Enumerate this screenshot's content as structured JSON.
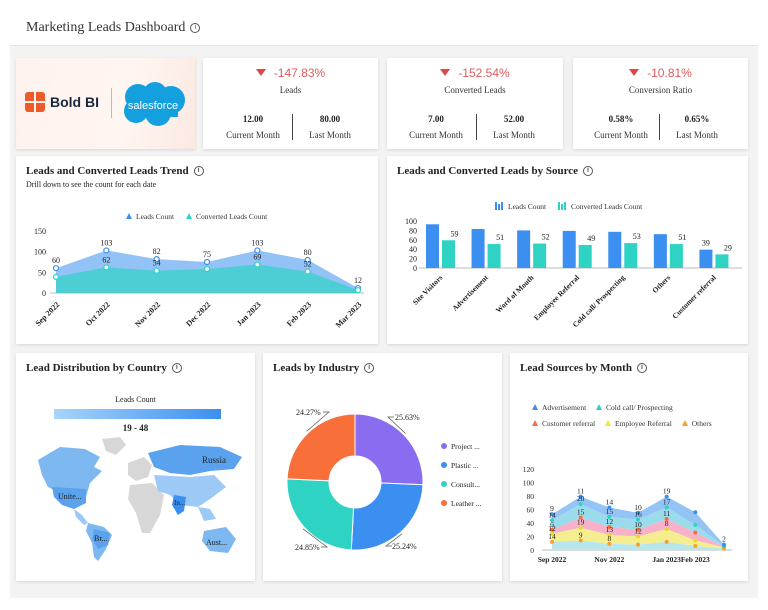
{
  "header": {
    "title": "Marketing Leads Dashboard"
  },
  "logos": {
    "boldbi": "Bold BI",
    "salesforce": "salesforce"
  },
  "kpis": [
    {
      "delta": "-147.83%",
      "name": "Leads",
      "current": "12.00",
      "last": "80.00",
      "current_label": "Current Month",
      "last_label": "Last Month"
    },
    {
      "delta": "-152.54%",
      "name": "Converted Leads",
      "current": "7.00",
      "last": "52.00",
      "current_label": "Current Month",
      "last_label": "Last Month"
    },
    {
      "delta": "-10.81%",
      "name": "Conversion Ratio",
      "current": "0.58%",
      "last": "0.65%",
      "current_label": "Current Month",
      "last_label": "Last Month"
    }
  ],
  "colors": {
    "leads": "#3b8ff0",
    "converted": "#2fd3c4",
    "negative": "#e04545"
  },
  "trend": {
    "title": "Leads and Converted Leads Trend",
    "subtitle": "Drill down to see the count for each date",
    "legend": [
      "Leads Count",
      "Converted Leads Count"
    ]
  },
  "source": {
    "title": "Leads and Converted Leads by Source",
    "legend": [
      "Leads Count",
      "Converted Leads Count"
    ]
  },
  "country": {
    "title": "Lead Distribution by Country",
    "legend_title": "Leads Count",
    "range": "19 - 48",
    "labels": [
      "Russia",
      "Unite...",
      "Br...",
      "Aust...",
      "In..."
    ]
  },
  "industry": {
    "title": "Leads by Industry",
    "legend": [
      "Project ...",
      "Plastic ...",
      "Consult...",
      "Leather ..."
    ]
  },
  "month": {
    "title": "Lead Sources by Month",
    "legend": [
      "Advertisement",
      "Cold call/ Prospecting",
      "Customer referral",
      "Employee Referral",
      "Others"
    ]
  },
  "chart_data": [
    {
      "type": "area",
      "title": "Leads and Converted Leads Trend",
      "categories": [
        "Sep 2022",
        "Oct 2022",
        "Nov 2022",
        "Dec 2022",
        "Jan 2023",
        "Feb 2023",
        "Mar 2023"
      ],
      "series": [
        {
          "name": "Leads Count",
          "values": [
            60,
            103,
            82,
            75,
            103,
            80,
            12
          ]
        },
        {
          "name": "Converted Leads Count",
          "values": [
            39,
            62,
            54,
            58,
            69,
            52,
            7
          ]
        }
      ],
      "ylim": [
        0,
        150
      ],
      "yticks": [
        "0",
        "50",
        "100",
        "150"
      ],
      "data_labels": [
        "60",
        "103",
        "82",
        "75",
        "103",
        "80",
        "12",
        "62",
        "54",
        "69",
        "52"
      ]
    },
    {
      "type": "bar",
      "title": "Leads and Converted Leads by Source",
      "categories": [
        "Site Visitors",
        "Advertisement",
        "Word of Mouth",
        "Employee Referral",
        "Cold call/ Prospecting",
        "Others",
        "Customer referral"
      ],
      "series": [
        {
          "name": "Leads Count",
          "values": [
            93,
            83,
            80,
            79,
            77,
            72,
            39
          ]
        },
        {
          "name": "Converted Leads Count",
          "values": [
            59,
            51,
            52,
            49,
            53,
            51,
            29
          ]
        }
      ],
      "ylim": [
        0,
        100
      ],
      "yticks": [
        "0",
        "20",
        "40",
        "60",
        "80",
        "100"
      ]
    },
    {
      "type": "pie",
      "title": "Leads by Industry",
      "categories": [
        "Project ...",
        "Plastic ...",
        "Consult...",
        "Leather ..."
      ],
      "values": [
        25.63,
        25.24,
        24.85,
        24.27
      ],
      "labels": [
        "25.63%",
        "25.24%",
        "24.85%",
        "24.27%"
      ]
    },
    {
      "type": "area",
      "title": "Lead Sources by Month",
      "categories": [
        "Sep 2022",
        "Oct 2022",
        "Nov 2022",
        "Dec 2022",
        "Jan 2023",
        "Feb 2023",
        "Mar 2023"
      ],
      "x_tick_labels": [
        "Sep 2022",
        "Nov 2022",
        "Jan 2023",
        "Feb 2023"
      ],
      "stacked": true,
      "series": [
        {
          "name": "Advertisement",
          "values": [
            9,
            11,
            14,
            10,
            16,
            19,
            2
          ]
        },
        {
          "name": "Cold call/ Prospecting",
          "values": [
            14,
            20,
            15,
            15,
            17,
            11,
            1
          ]
        },
        {
          "name": "Customer referral",
          "values": [
            6,
            15,
            12,
            10,
            15,
            12,
            1
          ]
        },
        {
          "name": "Employee Referral",
          "values": [
            12,
            19,
            13,
            12,
            19,
            8,
            2
          ]
        },
        {
          "name": "Others",
          "values": [
            12,
            14,
            9,
            8,
            12,
            6,
            2
          ]
        }
      ],
      "ylim": [
        0,
        120
      ],
      "yticks": [
        "0",
        "20",
        "40",
        "60",
        "80",
        "100",
        "120"
      ],
      "data_labels": [
        "9",
        "11",
        "14",
        "10",
        "19",
        "2",
        "14",
        "20",
        "15",
        "16",
        "17",
        "6",
        "15",
        "12",
        "10",
        "11",
        "12",
        "19",
        "13",
        "12",
        "8",
        "14",
        "9",
        "8"
      ]
    }
  ]
}
